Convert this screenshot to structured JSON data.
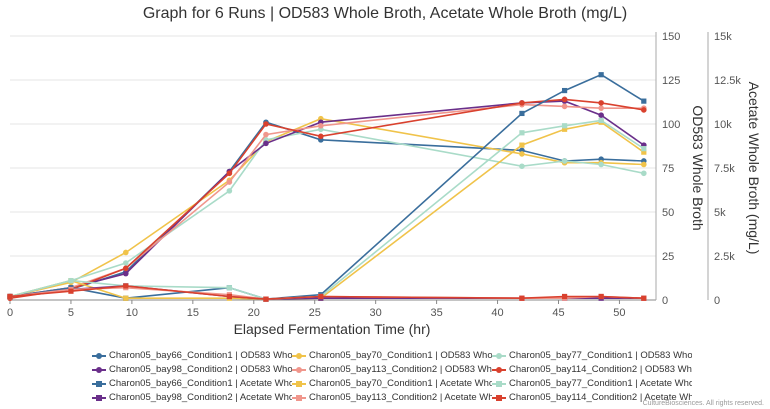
{
  "chart_data": {
    "type": "line",
    "title": "Graph for 6 Runs | OD583 Whole Broth, Acetate Whole Broth (mg/L)",
    "xlabel": "Elapsed Fermentation Time (hr)",
    "ylabel_left": "",
    "ylabel_right1": "OD583 Whole Broth",
    "ylabel_right2": "Acetate Whole Broth (mg/L)",
    "xlim": [
      0,
      53
    ],
    "y1lim": [
      0,
      150
    ],
    "y2lim": [
      0,
      15000
    ],
    "x_ticks": [
      "0",
      "5",
      "10",
      "15",
      "20",
      "25",
      "30",
      "35",
      "40",
      "45",
      "50"
    ],
    "y1_ticks": [
      "0",
      "25",
      "50",
      "75",
      "100",
      "125",
      "150"
    ],
    "y2_ticks": [
      "0",
      "2.5k",
      "5k",
      "7.5k",
      "10k",
      "12.5k",
      "15k"
    ],
    "grid": true,
    "legend_position": "bottom",
    "series": [
      {
        "name": "Charon05_bay66_Condition1 | OD583 Whol...",
        "color": "#3a6e9c",
        "marker": "circle",
        "axis": "od",
        "x": [
          0,
          5,
          9.5,
          18,
          21,
          25.5,
          42,
          45.5,
          48.5,
          52
        ],
        "y": [
          2,
          6,
          16,
          73,
          101,
          91,
          85,
          79,
          80,
          79
        ]
      },
      {
        "name": "Charon05_bay70_Condition1 | OD583 Whol...",
        "color": "#f0c34a",
        "marker": "circle",
        "axis": "od",
        "x": [
          0,
          5,
          9.5,
          18,
          21,
          25.5,
          42,
          45.5,
          48.5,
          52
        ],
        "y": [
          2,
          10,
          27,
          68,
          90,
          103,
          83,
          78,
          78,
          77
        ]
      },
      {
        "name": "Charon05_bay77_Condition1 | OD583 Whol...",
        "color": "#a9dbc8",
        "marker": "circle",
        "axis": "od",
        "x": [
          0,
          5,
          9.5,
          18,
          21,
          25.5,
          42,
          45.5,
          48.5,
          52
        ],
        "y": [
          2,
          11,
          21,
          62,
          91,
          97,
          76,
          79,
          77,
          72
        ]
      },
      {
        "name": "Charon05_bay98_Condition2 | OD583 Whol...",
        "color": "#6a2f8a",
        "marker": "circle",
        "axis": "od",
        "x": [
          0,
          5,
          9.5,
          18,
          21,
          25.5,
          42,
          45.5,
          48.5,
          52
        ],
        "y": [
          2,
          7,
          15,
          73,
          89,
          101,
          112,
          113,
          105,
          88
        ]
      },
      {
        "name": "Charon05_bay113_Condition2 | OD583 Who...",
        "color": "#f0968c",
        "marker": "circle",
        "axis": "od",
        "x": [
          0,
          5,
          9.5,
          18,
          21,
          25.5,
          42,
          45.5,
          48.5,
          52
        ],
        "y": [
          2,
          7,
          18,
          67,
          94,
          99,
          111,
          110,
          109,
          109
        ]
      },
      {
        "name": "Charon05_bay114_Condition2 | OD583 Wh...",
        "color": "#d9412e",
        "marker": "circle",
        "axis": "od",
        "x": [
          0,
          5,
          9.5,
          18,
          21,
          25.5,
          42,
          45.5,
          48.5,
          52
        ],
        "y": [
          1,
          6,
          18,
          72,
          100,
          93,
          112,
          114,
          112,
          108
        ]
      },
      {
        "name": "Charon05_bay66_Condition1 | Acetate Who...",
        "color": "#3a6e9c",
        "marker": "square",
        "axis": "acetate",
        "x": [
          0,
          5,
          9.5,
          18,
          21,
          25.5,
          42,
          45.5,
          48.5,
          52
        ],
        "y": [
          200,
          700,
          100,
          700,
          50,
          300,
          10600,
          11900,
          12800,
          11300
        ]
      },
      {
        "name": "Charon05_bay70_Condition1 | Acetate Who...",
        "color": "#f0c34a",
        "marker": "square",
        "axis": "acetate",
        "x": [
          0,
          5,
          9.5,
          18,
          21,
          25.5,
          42,
          45.5,
          48.5,
          52
        ],
        "y": [
          200,
          1100,
          100,
          100,
          50,
          100,
          8800,
          9700,
          10100,
          8400
        ]
      },
      {
        "name": "Charon05_bay77_Condition1 | Acetate Who...",
        "color": "#a9dbc8",
        "marker": "square",
        "axis": "acetate",
        "x": [
          0,
          5,
          9.5,
          18,
          21,
          25.5,
          42,
          45.5,
          48.5,
          52
        ],
        "y": [
          200,
          1100,
          800,
          700,
          50,
          200,
          9500,
          9900,
          10200,
          8600
        ]
      },
      {
        "name": "Charon05_bay98_Condition2 | Acetate Who...",
        "color": "#6a2f8a",
        "marker": "square",
        "axis": "acetate",
        "x": [
          0,
          5,
          9.5,
          18,
          21,
          25.5,
          42,
          45.5,
          48.5,
          52
        ],
        "y": [
          200,
          600,
          800,
          200,
          50,
          100,
          100,
          100,
          100,
          100
        ]
      },
      {
        "name": "Charon05_bay113_Condition2 | Acetate Wh...",
        "color": "#f0968c",
        "marker": "square",
        "axis": "acetate",
        "x": [
          0,
          5,
          9.5,
          18,
          21,
          25.5,
          42,
          45.5,
          48.5,
          52
        ],
        "y": [
          200,
          600,
          700,
          300,
          50,
          200,
          100,
          100,
          200,
          100
        ]
      },
      {
        "name": "Charon05_bay114_Condition2 | Acetate Wh...",
        "color": "#d9412e",
        "marker": "square",
        "axis": "acetate",
        "x": [
          0,
          5,
          9.5,
          18,
          21,
          25.5,
          42,
          45.5,
          48.5,
          52
        ],
        "y": [
          200,
          500,
          800,
          200,
          50,
          200,
          100,
          200,
          200,
          100
        ]
      }
    ]
  },
  "credit": "CultureBiosciences. All rights reserved."
}
